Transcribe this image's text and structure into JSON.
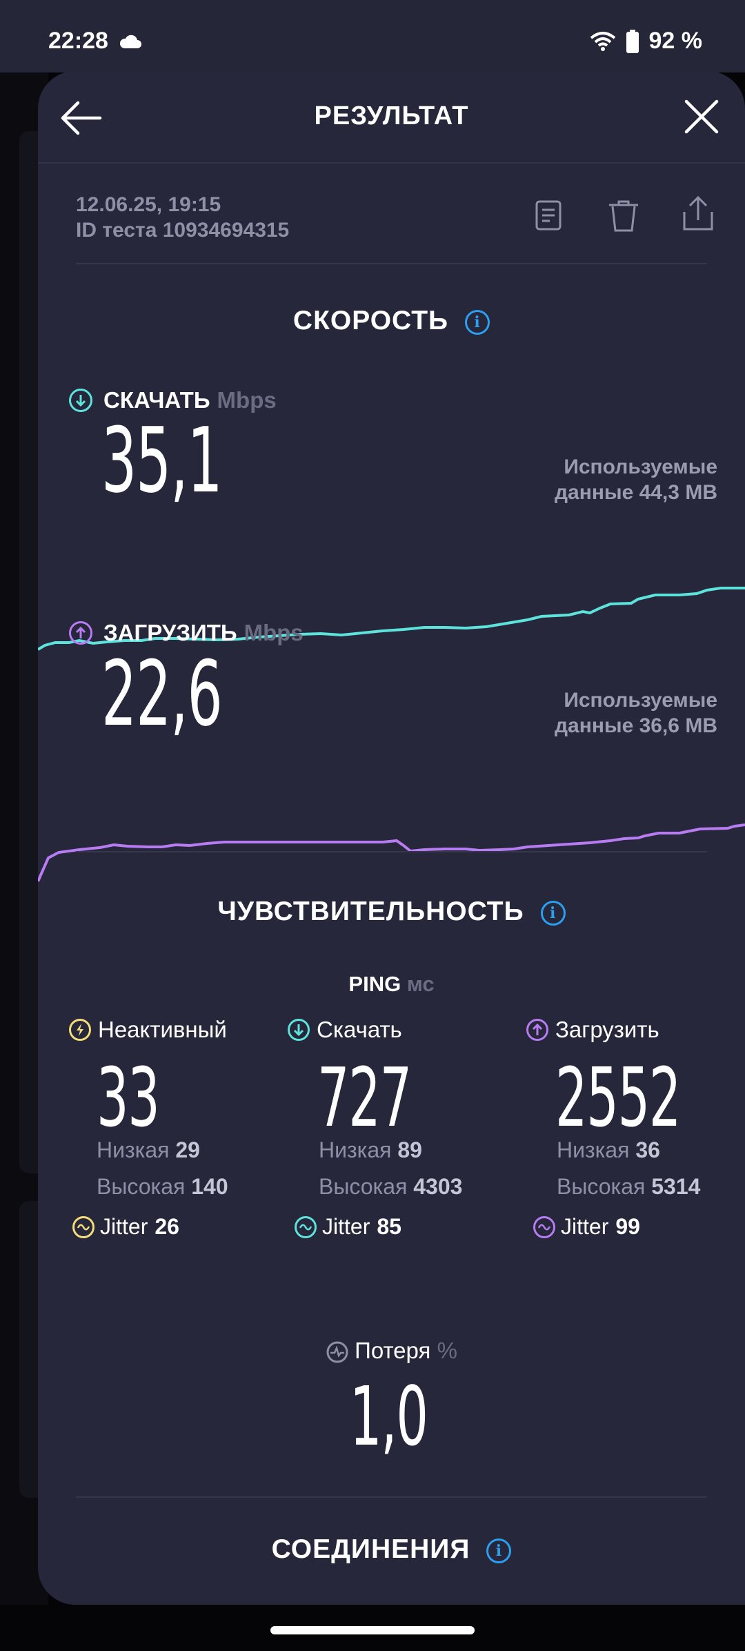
{
  "status": {
    "time": "22:28",
    "battery": "92 %"
  },
  "header": {
    "title": "РЕЗУЛЬТАТ"
  },
  "meta": {
    "datetime": "12.06.25, 19:15",
    "test_id": "ID теста 10934694315"
  },
  "speed": {
    "title": "СКОРОСТЬ",
    "download": {
      "label": "СКАЧАТЬ",
      "unit": "Mbps",
      "value": "35,1",
      "used_line1": "Используемые",
      "used_line2": "данные 44,3 MB"
    },
    "upload": {
      "label": "ЗАГРУЗИТЬ",
      "unit": "Mbps",
      "value": "22,6",
      "used_line1": "Используемые",
      "used_line2": "данные 36,6 MB"
    }
  },
  "sensitivity": {
    "title": "ЧУВСТВИТЕЛЬНОСТЬ",
    "ping_label": "PING",
    "ping_unit": "мс",
    "low_label": "Низкая",
    "high_label": "Высокая",
    "jitter_label": "Jitter",
    "columns": [
      {
        "label": "Неактивный",
        "value": "33",
        "low": "29",
        "high": "140",
        "jitter": "26",
        "color": "#f3dd7a"
      },
      {
        "label": "Скачать",
        "value": "727",
        "low": "89",
        "high": "4303",
        "jitter": "85",
        "color": "#5ee3dc"
      },
      {
        "label": "Загрузить",
        "value": "2552",
        "low": "36",
        "high": "5314",
        "jitter": "99",
        "color": "#b77cf2"
      }
    ],
    "loss_label": "Потеря",
    "loss_unit": "%",
    "loss_value": "1,0"
  },
  "connections": {
    "title": "СОЕДИНЕНИЯ"
  },
  "colors": {
    "download": "#5ee3dc",
    "upload": "#b77cf2",
    "info": "#2b9ff0",
    "background": "#26273a"
  }
}
